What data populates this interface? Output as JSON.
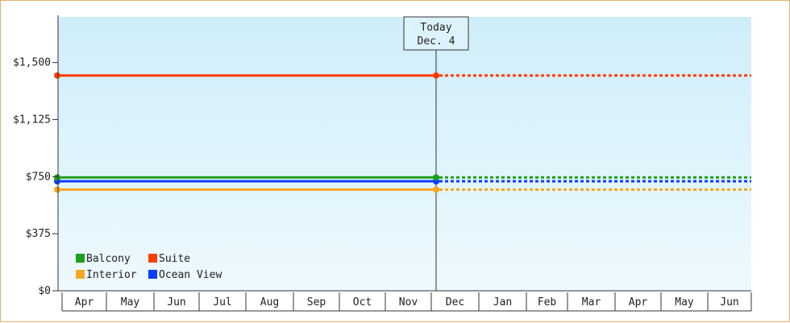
{
  "chart_data": {
    "type": "line",
    "ylim": [
      0,
      1800
    ],
    "y_ticks": [
      {
        "value": 0,
        "label": "$0"
      },
      {
        "value": 375,
        "label": "$375"
      },
      {
        "value": 750,
        "label": "$750"
      },
      {
        "value": 1125,
        "label": "$1,125"
      },
      {
        "value": 1500,
        "label": "$1,500"
      }
    ],
    "categories": [
      "Apr",
      "May",
      "Jun",
      "Jul",
      "Aug",
      "Sep",
      "Oct",
      "Nov",
      "Dec",
      "Jan",
      "Feb",
      "Mar",
      "Apr",
      "May",
      "Jun"
    ],
    "today_index": 8,
    "today_label": {
      "line1": "Today",
      "line2": "Dec. 4"
    },
    "series": [
      {
        "name": "Balcony",
        "color": "#1e9e1e",
        "value": 745
      },
      {
        "name": "Suite",
        "color": "#ff3d00",
        "value": 1415
      },
      {
        "name": "Interior",
        "color": "#f5a623",
        "value": 665
      },
      {
        "name": "Ocean View",
        "color": "#0a3cff",
        "value": 720
      }
    ],
    "legend_order": [
      "Balcony",
      "Suite",
      "Interior",
      "Ocean View"
    ],
    "projection_style": "dotted after today",
    "grid": false,
    "legend_position": "bottom-left",
    "background": [
      "#cfeefa",
      "#eef9fe"
    ]
  }
}
